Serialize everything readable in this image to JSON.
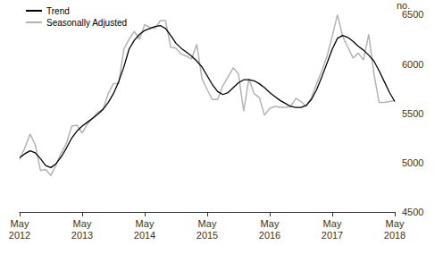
{
  "chart_data": {
    "type": "line",
    "y_label": "no.",
    "categories": [
      "May 2012",
      null,
      null,
      null,
      null,
      null,
      null,
      null,
      null,
      null,
      null,
      null,
      "May 2013",
      null,
      null,
      null,
      null,
      null,
      null,
      null,
      null,
      null,
      null,
      null,
      "May 2014",
      null,
      null,
      null,
      null,
      null,
      null,
      null,
      null,
      null,
      null,
      null,
      "May 2015",
      null,
      null,
      null,
      null,
      null,
      null,
      null,
      null,
      null,
      null,
      null,
      "May 2016",
      null,
      null,
      null,
      null,
      null,
      null,
      null,
      null,
      null,
      null,
      null,
      "May 2017",
      null,
      null,
      null,
      null,
      null,
      null,
      null,
      null,
      null,
      null,
      null,
      "May 2018"
    ],
    "series": [
      {
        "name": "Trend",
        "color": "#000000",
        "values": [
          5050,
          5090,
          5120,
          5100,
          5040,
          4970,
          4950,
          4990,
          5060,
          5150,
          5250,
          5320,
          5370,
          5410,
          5450,
          5490,
          5540,
          5610,
          5700,
          5820,
          5970,
          6150,
          6240,
          6300,
          6340,
          6360,
          6380,
          6390,
          6360,
          6290,
          6210,
          6160,
          6120,
          6080,
          6030,
          5970,
          5880,
          5790,
          5720,
          5690,
          5710,
          5760,
          5810,
          5840,
          5840,
          5830,
          5800,
          5760,
          5710,
          5670,
          5630,
          5600,
          5570,
          5560,
          5560,
          5580,
          5640,
          5740,
          5870,
          6010,
          6150,
          6260,
          6290,
          6270,
          6230,
          6180,
          6140,
          6090,
          6030,
          5930,
          5820,
          5710,
          5620
        ]
      },
      {
        "name": "Seasonally Adjusted",
        "color": "#b3b3b3",
        "values": [
          5030,
          5150,
          5290,
          5180,
          4920,
          4930,
          4870,
          4980,
          5100,
          5200,
          5370,
          5380,
          5300,
          5390,
          5450,
          5510,
          5540,
          5700,
          5800,
          5800,
          6150,
          6250,
          6330,
          6250,
          6400,
          6370,
          6360,
          6440,
          6440,
          6170,
          6160,
          6100,
          6080,
          6050,
          6200,
          5850,
          5740,
          5640,
          5640,
          5780,
          5870,
          5960,
          5900,
          5520,
          5850,
          5700,
          5660,
          5480,
          5550,
          5570,
          5560,
          5560,
          5570,
          5650,
          5620,
          5570,
          5660,
          5800,
          5930,
          6080,
          6280,
          6500,
          6280,
          6170,
          6060,
          6110,
          6040,
          6300,
          5900,
          5610,
          5610,
          5620,
          5630
        ]
      }
    ],
    "ylim": [
      4500,
      6500
    ],
    "yticks": [
      4500,
      5000,
      5500,
      6000,
      6500
    ],
    "grid": false,
    "legend": "upper left"
  }
}
